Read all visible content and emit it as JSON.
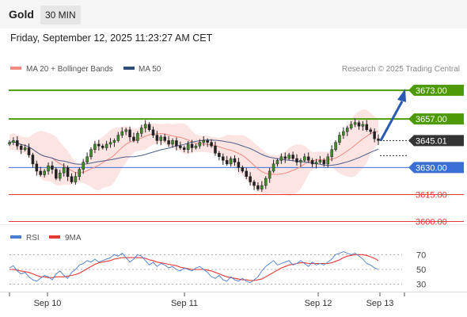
{
  "header": {
    "asset": "Gold",
    "timeframe": "30 MIN"
  },
  "timestamp": "Friday, September 12, 2025 11:23:27 AM CET",
  "legend": {
    "bb_label": "MA 20 + Bollinger Bands",
    "ma50_label": "MA 50",
    "credit": "Research © 2025 Trading Central",
    "bb_color": "#f28b82",
    "ma50_color": "#2e4d7b"
  },
  "rsi_legend": {
    "rsi_label": "RSI",
    "ma_label": "9MA",
    "rsi_color": "#4a7bd0",
    "ma_color": "#e53935"
  },
  "chart_data": [
    {
      "type": "candlestick",
      "x_ticks": [
        "Sep 10",
        "Sep 11",
        "Sep 12",
        "Sep 13"
      ],
      "ylim": [
        3598,
        3680
      ],
      "levels": [
        {
          "value": 3673.0,
          "label": "3673.00",
          "kind": "resistance",
          "color": "#4e9a06"
        },
        {
          "value": 3657.0,
          "label": "3657.00",
          "kind": "resistance",
          "color": "#4e9a06"
        },
        {
          "value": 3645.01,
          "label": "3645.01",
          "kind": "current",
          "color": "#333333"
        },
        {
          "value": 3630.0,
          "label": "3630.00",
          "kind": "pivot",
          "color": "#3b6fd6"
        },
        {
          "value": 3615.0,
          "label": "3615.00",
          "kind": "support",
          "color": "#e53935"
        },
        {
          "value": 3600.0,
          "label": "3600.00",
          "kind": "support",
          "color": "#e53935"
        }
      ],
      "arrow": {
        "from": 3645,
        "to": 3673,
        "direction": "up"
      },
      "close": [
        3644,
        3645,
        3642,
        3640,
        3641,
        3637,
        3632,
        3628,
        3626,
        3628,
        3631,
        3629,
        3624,
        3627,
        3630,
        3625,
        3622,
        3625,
        3629,
        3633,
        3636,
        3640,
        3643,
        3642,
        3641,
        3643,
        3644,
        3645,
        3648,
        3650,
        3651,
        3647,
        3645,
        3649,
        3652,
        3654,
        3651,
        3648,
        3645,
        3647,
        3645,
        3643,
        3645,
        3642,
        3641,
        3640,
        3643,
        3641,
        3642,
        3644,
        3645,
        3644,
        3642,
        3638,
        3636,
        3634,
        3632,
        3635,
        3633,
        3630,
        3628,
        3625,
        3622,
        3620,
        3618,
        3620,
        3624,
        3628,
        3632,
        3634,
        3636,
        3635,
        3637,
        3635,
        3633,
        3634,
        3636,
        3634,
        3632,
        3633,
        3634,
        3632,
        3636,
        3640,
        3644,
        3648,
        3650,
        3652,
        3654,
        3655,
        3653,
        3654,
        3651,
        3650,
        3646,
        3645
      ]
    },
    {
      "type": "line",
      "name": "RSI",
      "yticks": [
        70,
        50,
        30
      ],
      "ylim": [
        20,
        80
      ],
      "rsi": [
        52,
        55,
        48,
        44,
        46,
        40,
        36,
        34,
        38,
        42,
        40,
        36,
        44,
        48,
        42,
        38,
        46,
        50,
        56,
        58,
        62,
        60,
        64,
        60,
        62,
        64,
        66,
        70,
        68,
        72,
        66,
        60,
        64,
        70,
        68,
        62,
        56,
        60,
        54,
        58,
        56,
        52,
        54,
        50,
        48,
        52,
        50,
        48,
        52,
        54,
        50,
        46,
        40,
        38,
        42,
        36,
        34,
        40,
        36,
        34,
        38,
        34,
        32,
        36,
        40,
        48,
        54,
        58,
        62,
        56,
        58,
        60,
        62,
        56,
        58,
        62,
        58,
        54,
        60,
        56,
        58,
        56,
        60,
        64,
        70,
        72,
        74,
        72,
        70,
        72,
        68,
        64,
        58,
        56,
        52,
        50
      ],
      "ma9": [
        50,
        50,
        49,
        48,
        47,
        46,
        44,
        42,
        40,
        40,
        39,
        39,
        40,
        40,
        40,
        41,
        42,
        43,
        45,
        48,
        51,
        54,
        57,
        59,
        60,
        61,
        62,
        64,
        65,
        66,
        66,
        66,
        66,
        66,
        66,
        65,
        63,
        62,
        60,
        59,
        58,
        57,
        56,
        55,
        53,
        52,
        51,
        50,
        50,
        50,
        50,
        49,
        48,
        46,
        44,
        42,
        40,
        39,
        38,
        37,
        36,
        36,
        35,
        35,
        36,
        37,
        40,
        43,
        46,
        49,
        52,
        54,
        56,
        57,
        58,
        59,
        59,
        58,
        58,
        58,
        58,
        58,
        58,
        59,
        61,
        63,
        66,
        68,
        69,
        70,
        70,
        70,
        69,
        67,
        65,
        62
      ]
    }
  ]
}
